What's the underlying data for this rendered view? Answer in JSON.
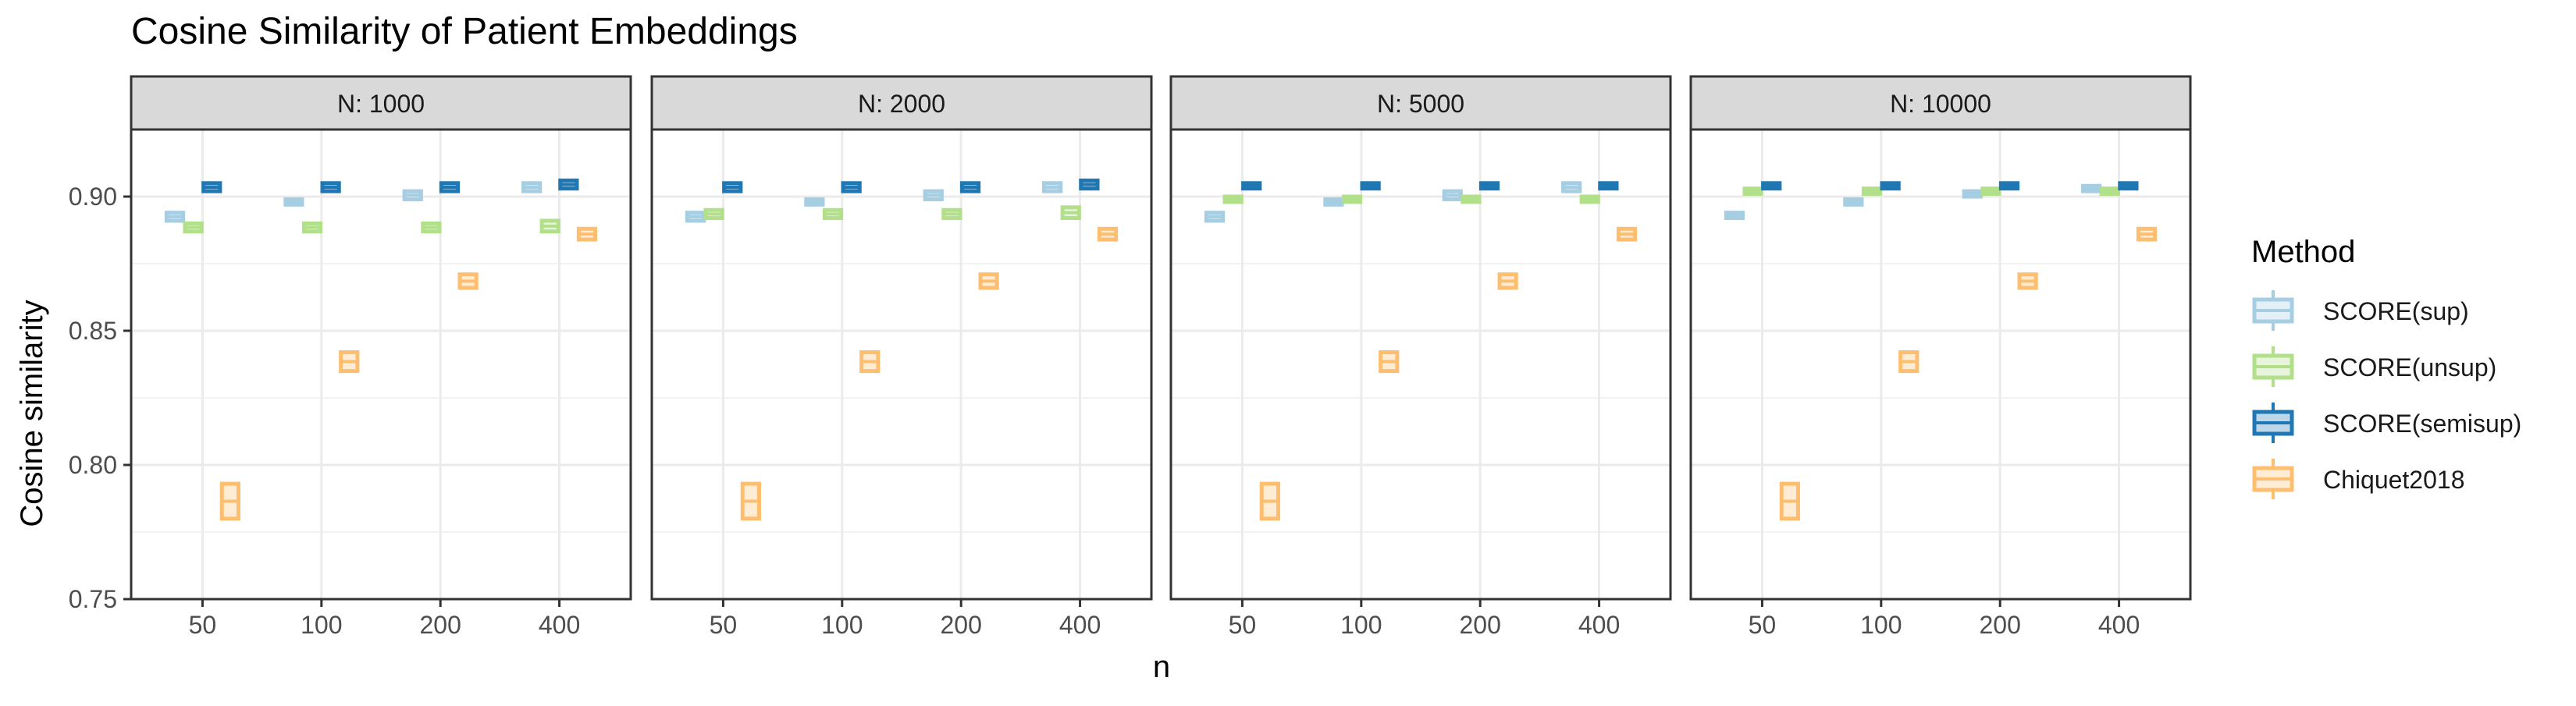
{
  "chart_data": {
    "type": "boxplot",
    "title": "Cosine Similarity of Patient Embeddings",
    "xlabel": "n",
    "ylabel": "Cosine similarity",
    "facet_prefix": "N: ",
    "ylim": [
      0.75,
      0.925
    ],
    "y_ticks": [
      0.75,
      0.8,
      0.85,
      0.9
    ],
    "y_tick_labels": [
      "0.75",
      "0.80",
      "0.85",
      "0.90"
    ],
    "grid": true,
    "legend_title": "Method",
    "legend_position": "right",
    "categories": [
      "50",
      "100",
      "200",
      "400"
    ],
    "facets": [
      {
        "label": "1000",
        "series": [
          {
            "name": "SCORE(sup)",
            "color": "#a6cee3",
            "boxes": [
              [
                0.891,
                0.894
              ],
              [
                0.897,
                0.899
              ],
              [
                0.899,
                0.902
              ],
              [
                0.902,
                0.905
              ]
            ]
          },
          {
            "name": "SCORE(unsup)",
            "color": "#b2df8a",
            "boxes": [
              [
                0.887,
                0.89
              ],
              [
                0.887,
                0.89
              ],
              [
                0.887,
                0.89
              ],
              [
                0.887,
                0.891
              ]
            ]
          },
          {
            "name": "SCORE(semisup)",
            "color": "#1f78b4",
            "boxes": [
              [
                0.902,
                0.905
              ],
              [
                0.902,
                0.905
              ],
              [
                0.902,
                0.905
              ],
              [
                0.903,
                0.906
              ]
            ]
          },
          {
            "name": "Chiquet2018",
            "color": "#fdbf6f",
            "boxes": [
              [
                0.78,
                0.793
              ],
              [
                0.835,
                0.842
              ],
              [
                0.866,
                0.871
              ],
              [
                0.884,
                0.888
              ]
            ]
          }
        ]
      },
      {
        "label": "2000",
        "series": [
          {
            "name": "SCORE(sup)",
            "color": "#a6cee3",
            "boxes": [
              [
                0.891,
                0.894
              ],
              [
                0.897,
                0.899
              ],
              [
                0.899,
                0.902
              ],
              [
                0.902,
                0.905
              ]
            ]
          },
          {
            "name": "SCORE(unsup)",
            "color": "#b2df8a",
            "boxes": [
              [
                0.892,
                0.895
              ],
              [
                0.892,
                0.895
              ],
              [
                0.892,
                0.895
              ],
              [
                0.892,
                0.896
              ]
            ]
          },
          {
            "name": "SCORE(semisup)",
            "color": "#1f78b4",
            "boxes": [
              [
                0.902,
                0.905
              ],
              [
                0.902,
                0.905
              ],
              [
                0.902,
                0.905
              ],
              [
                0.903,
                0.906
              ]
            ]
          },
          {
            "name": "Chiquet2018",
            "color": "#fdbf6f",
            "boxes": [
              [
                0.78,
                0.793
              ],
              [
                0.835,
                0.842
              ],
              [
                0.866,
                0.871
              ],
              [
                0.884,
                0.888
              ]
            ]
          }
        ]
      },
      {
        "label": "5000",
        "series": [
          {
            "name": "SCORE(sup)",
            "color": "#a6cee3",
            "boxes": [
              [
                0.891,
                0.894
              ],
              [
                0.897,
                0.899
              ],
              [
                0.899,
                0.902
              ],
              [
                0.902,
                0.905
              ]
            ]
          },
          {
            "name": "SCORE(unsup)",
            "color": "#b2df8a",
            "boxes": [
              [
                0.898,
                0.9
              ],
              [
                0.898,
                0.9
              ],
              [
                0.898,
                0.9
              ],
              [
                0.898,
                0.9
              ]
            ]
          },
          {
            "name": "SCORE(semisup)",
            "color": "#1f78b4",
            "boxes": [
              [
                0.903,
                0.905
              ],
              [
                0.903,
                0.905
              ],
              [
                0.903,
                0.905
              ],
              [
                0.903,
                0.905
              ]
            ]
          },
          {
            "name": "Chiquet2018",
            "color": "#fdbf6f",
            "boxes": [
              [
                0.78,
                0.793
              ],
              [
                0.835,
                0.842
              ],
              [
                0.866,
                0.871
              ],
              [
                0.884,
                0.888
              ]
            ]
          }
        ]
      },
      {
        "label": "10000",
        "series": [
          {
            "name": "SCORE(sup)",
            "color": "#a6cee3",
            "boxes": [
              [
                0.892,
                0.894
              ],
              [
                0.897,
                0.899
              ],
              [
                0.9,
                0.902
              ],
              [
                0.902,
                0.904
              ]
            ]
          },
          {
            "name": "SCORE(unsup)",
            "color": "#b2df8a",
            "boxes": [
              [
                0.901,
                0.903
              ],
              [
                0.901,
                0.903
              ],
              [
                0.901,
                0.903
              ],
              [
                0.901,
                0.903
              ]
            ]
          },
          {
            "name": "SCORE(semisup)",
            "color": "#1f78b4",
            "boxes": [
              [
                0.903,
                0.905
              ],
              [
                0.903,
                0.905
              ],
              [
                0.903,
                0.905
              ],
              [
                0.903,
                0.905
              ]
            ]
          },
          {
            "name": "Chiquet2018",
            "color": "#fdbf6f",
            "boxes": [
              [
                0.78,
                0.793
              ],
              [
                0.835,
                0.842
              ],
              [
                0.866,
                0.871
              ],
              [
                0.884,
                0.888
              ]
            ]
          }
        ]
      }
    ]
  }
}
